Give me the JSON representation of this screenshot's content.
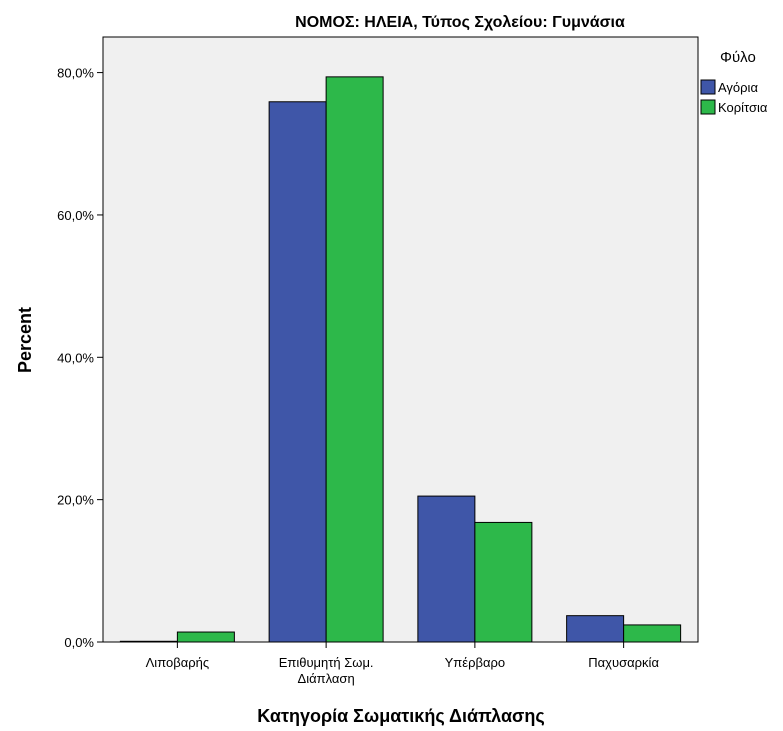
{
  "chart_data": {
    "type": "bar",
    "title": "ΝΟΜΟΣ: ΗΛΕΙΑ, Τύπος Σχολείου: Γυμνάσια",
    "xlabel": "Κατηγορία Σωματικής Διάπλασης",
    "ylabel": "Percent",
    "categories": [
      [
        "Λιποβαρής"
      ],
      [
        "Επιθυμητή Σωμ.",
        "Διάπλαση"
      ],
      [
        "Υπέρβαρο"
      ],
      [
        "Παχυσαρκία"
      ]
    ],
    "series": [
      {
        "name": "Αγόρια",
        "color": "#3f56a8",
        "values": [
          0.1,
          75.9,
          20.5,
          3.7
        ]
      },
      {
        "name": "Κορίτσια",
        "color": "#2db84a",
        "values": [
          1.4,
          79.4,
          16.8,
          2.4
        ]
      }
    ],
    "ylim": [
      0,
      85
    ],
    "yticks": [
      0,
      20,
      40,
      60,
      80
    ],
    "ytick_labels": [
      "0,0%",
      "20,0%",
      "40,0%",
      "60,0%",
      "80,0%"
    ],
    "legend_title": "Φύλο",
    "legend_position": "right",
    "plot_background": "#f0f0f0",
    "grid": false
  }
}
